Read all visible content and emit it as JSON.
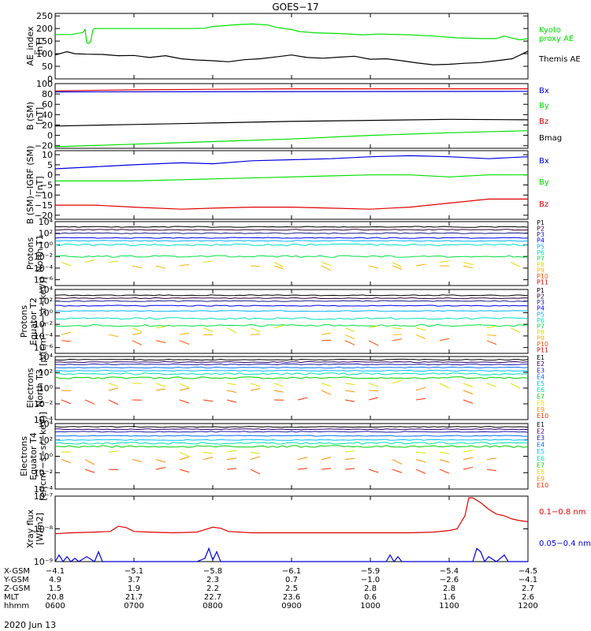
{
  "title": "GOES−17",
  "date_label": "2020 Jun 13",
  "colors": {
    "black": "#000000",
    "red": "#e00000",
    "green": "#00e000",
    "blue": "#0000e0",
    "p_series": [
      "#000000",
      "#330033",
      "#1c1c8e",
      "#0000ff",
      "#00b4ff",
      "#00e0c0",
      "#00e040",
      "#d8e000",
      "#ffb000",
      "#ff5000",
      "#e00000"
    ],
    "e_series": [
      "#000000",
      "#30006a",
      "#1a1ab0",
      "#0070ff",
      "#00c0ff",
      "#00e0b0",
      "#00d000",
      "#e0e000",
      "#ff9000",
      "#ff3000",
      "#e00000"
    ]
  },
  "chart_data": [
    {
      "type": "line",
      "id": "ae",
      "ylabel": [
        "AE_index",
        "[nT]"
      ],
      "ylim": [
        0,
        260
      ],
      "yticks": [
        "0",
        "50",
        "100",
        "150",
        "200",
        "250"
      ],
      "ytick_values": [
        0,
        50,
        100,
        150,
        200,
        250
      ],
      "xlim": [
        600,
        1200
      ],
      "series": [
        {
          "name": "Kyoto proxy AE",
          "label_lines": [
            "Kyoto",
            "proxy AE"
          ],
          "color": "#00e000",
          "x": [
            600,
            620,
            635,
            638,
            640,
            642,
            645,
            648,
            650,
            655,
            660,
            665,
            690,
            710,
            730,
            750,
            770,
            790,
            800,
            830,
            850,
            870,
            880,
            890,
            900,
            910,
            930,
            960,
            990,
            1010,
            1050,
            1080,
            1110,
            1140,
            1150,
            1160,
            1170,
            1180,
            1190,
            1200
          ],
          "y": [
            176,
            176,
            184,
            196,
            145,
            140,
            148,
            195,
            200,
            200,
            200,
            200,
            200,
            200,
            200,
            200,
            200,
            201,
            208,
            215,
            218,
            214,
            205,
            200,
            196,
            188,
            183,
            180,
            175,
            178,
            175,
            170,
            163,
            160,
            160,
            160,
            170,
            162,
            155,
            160
          ]
        },
        {
          "name": "Themis AE",
          "label_lines": [
            "Themis AE"
          ],
          "color": "#000000",
          "x": [
            600,
            615,
            625,
            640,
            660,
            680,
            700,
            720,
            740,
            760,
            780,
            800,
            820,
            840,
            860,
            880,
            900,
            920,
            940,
            960,
            980,
            1000,
            1020,
            1040,
            1060,
            1080,
            1100,
            1120,
            1140,
            1160,
            1180,
            1200
          ],
          "y": [
            95,
            108,
            100,
            98,
            97,
            92,
            93,
            85,
            92,
            80,
            75,
            72,
            68,
            76,
            80,
            87,
            95,
            85,
            82,
            86,
            90,
            78,
            80,
            72,
            63,
            56,
            58,
            62,
            65,
            72,
            80,
            110
          ]
        }
      ]
    },
    {
      "type": "line",
      "id": "bsm",
      "ylabel": [
        "B (SM)",
        "[nT]"
      ],
      "ylim": [
        -25,
        100
      ],
      "yticks": [
        "−20",
        "0",
        "20",
        "40",
        "60",
        "80",
        "100"
      ],
      "ytick_values": [
        -20,
        0,
        20,
        40,
        60,
        80,
        100
      ],
      "xlim": [
        600,
        1200
      ],
      "series": [
        {
          "name": "Bx",
          "color": "#0000e0",
          "x": [
            600,
            1200
          ],
          "y": [
            84,
            85
          ]
        },
        {
          "name": "By",
          "color": "#00e000",
          "x": [
            600,
            700,
            800,
            900,
            1000,
            1100,
            1200
          ],
          "y": [
            -22,
            -17,
            -12,
            -7,
            0,
            5,
            9
          ]
        },
        {
          "name": "Bz",
          "color": "#e00000",
          "x": [
            600,
            700,
            800,
            900,
            1000,
            1100,
            1200
          ],
          "y": [
            86,
            88,
            89,
            90,
            90,
            90,
            90
          ]
        },
        {
          "name": "Bmag",
          "color": "#000000",
          "x": [
            600,
            700,
            800,
            900,
            1000,
            1100,
            1200
          ],
          "y": [
            18,
            21,
            24,
            27,
            29,
            31,
            30
          ]
        }
      ]
    },
    {
      "type": "line",
      "id": "bigrf",
      "ylabel": [
        "B (SM)−IGRF (SM)",
        "[nT]"
      ],
      "ylim": [
        -22,
        12
      ],
      "yticks": [
        "−20",
        "−15",
        "−10",
        "−5",
        "0",
        "5",
        "10"
      ],
      "ytick_values": [
        -20,
        -15,
        -10,
        -5,
        0,
        5,
        10
      ],
      "xlim": [
        600,
        1200
      ],
      "series": [
        {
          "name": "Bx",
          "color": "#0000e0",
          "x": [
            600,
            650,
            700,
            760,
            800,
            850,
            900,
            950,
            1000,
            1050,
            1100,
            1150,
            1200
          ],
          "y": [
            3,
            4,
            5,
            6,
            5.5,
            7,
            7.5,
            8,
            9,
            9.5,
            9,
            8,
            9
          ]
        },
        {
          "name": "By",
          "color": "#00e000",
          "x": [
            600,
            700,
            800,
            900,
            1000,
            1050,
            1100,
            1150,
            1200
          ],
          "y": [
            -3,
            -3,
            -2,
            -1,
            0,
            0,
            -1,
            0,
            0
          ]
        },
        {
          "name": "Bz",
          "color": "#e00000",
          "x": [
            600,
            650,
            700,
            760,
            800,
            850,
            900,
            950,
            1000,
            1050,
            1100,
            1150,
            1200
          ],
          "y": [
            -15,
            -15,
            -16,
            -17,
            -16.5,
            -16,
            -16,
            -16.5,
            -17,
            -16,
            -14,
            -12,
            -12
          ]
        }
      ]
    },
    {
      "type": "line",
      "id": "p_t1",
      "log": true,
      "ylabel": [
        "Protons",
        "North T1"
      ],
      "ylim_exp": [
        -7,
        4
      ],
      "yticks": [
        "10⁴",
        "10²",
        "10⁰",
        "10⁻²",
        "10⁻⁴",
        "10⁻⁶"
      ],
      "ytick_exps": [
        4,
        2,
        0,
        -2,
        -4,
        -6
      ],
      "xlim": [
        600,
        1200
      ],
      "series_names": [
        "P1",
        "P2",
        "P3",
        "P4",
        "P5",
        "P6",
        "P7",
        "P8",
        "P9",
        "P10",
        "P11"
      ],
      "series_exps": [
        3.1,
        2.6,
        2.0,
        1.2,
        0.7,
        0.0,
        -2.0,
        -3.0,
        -3.6,
        null,
        null
      ]
    },
    {
      "type": "line",
      "id": "p_t2",
      "log": true,
      "ylabel": [
        "Protons",
        "Equator T2",
        "[p/(cm²−s−sr−keV)]"
      ],
      "ylim_exp": [
        -7,
        4
      ],
      "yticks": [
        "10⁴",
        "10²",
        "10⁰",
        "10⁻²",
        "10⁻⁴",
        "10⁻⁶"
      ],
      "ytick_exps": [
        4,
        2,
        0,
        -2,
        -4,
        -6
      ],
      "xlim": [
        600,
        1200
      ],
      "series_names": [
        "P1",
        "P2",
        "P3",
        "P4",
        "P5",
        "P6",
        "P7",
        "P8",
        "P9",
        "P10",
        "P11"
      ],
      "series_exps": [
        3.0,
        2.5,
        2.0,
        1.2,
        0.3,
        -1.0,
        -2.2,
        -2.6,
        -3.8,
        -4.8,
        null
      ]
    },
    {
      "type": "line",
      "id": "e_t3",
      "log": true,
      "ylabel": [
        "Electrons",
        "North T3"
      ],
      "ylim_exp": [
        -4,
        4
      ],
      "yticks": [
        "10⁴",
        "10²",
        "10⁰",
        "10⁻²",
        "10⁻⁴"
      ],
      "ytick_exps": [
        4,
        2,
        0,
        -2,
        -4
      ],
      "xlim": [
        600,
        1200
      ],
      "series_names": [
        "E1",
        "E2",
        "E3",
        "E4",
        "E5",
        "E6",
        "E7",
        "E8",
        "E9",
        "E10"
      ],
      "series_exps": [
        3.6,
        3.3,
        3.0,
        2.6,
        2.2,
        1.8,
        1.3,
        0.6,
        -0.3,
        -1.5
      ]
    },
    {
      "type": "line",
      "id": "e_t4",
      "log": true,
      "ylabel": [
        "Electrons",
        "Equator T4",
        "[e/(cm²−s−sr−keV)]"
      ],
      "ylim_exp": [
        -4,
        4
      ],
      "yticks": [
        "10⁴",
        "10²",
        "10⁰",
        "10⁻²",
        "10⁻⁴"
      ],
      "ytick_exps": [
        4,
        2,
        0,
        -2,
        -4
      ],
      "xlim": [
        600,
        1200
      ],
      "series_names": [
        "E1",
        "E2",
        "E3",
        "E4",
        "E5",
        "E6",
        "E7",
        "E8",
        "E9",
        "E10"
      ],
      "series_exps": [
        3.6,
        3.3,
        3.0,
        2.5,
        2.0,
        1.6,
        1.2,
        0.5,
        -0.4,
        -1.6
      ]
    },
    {
      "type": "line",
      "id": "xray",
      "log": true,
      "ylabel": [
        "Xray flux",
        "[W/m2]"
      ],
      "ylim_exp": [
        -9,
        -7
      ],
      "yticks": [
        "10⁻⁷",
        "10⁻⁸",
        "10⁻⁹"
      ],
      "ytick_exps": [
        -7,
        -8,
        -9
      ],
      "xlim": [
        600,
        1200
      ],
      "series": [
        {
          "name": "0.1−0.8 nm",
          "color": "#e00000",
          "x": [
            600,
            620,
            650,
            670,
            680,
            690,
            700,
            720,
            750,
            780,
            800,
            810,
            820,
            850,
            900,
            950,
            1000,
            1050,
            1080,
            1100,
            1110,
            1120,
            1125,
            1130,
            1140,
            1150,
            1160,
            1170,
            1180,
            1190,
            1200
          ],
          "y_exp": [
            -8.15,
            -8.12,
            -8.1,
            -8.08,
            -7.92,
            -7.96,
            -8.08,
            -8.1,
            -8.12,
            -8.1,
            -7.95,
            -7.98,
            -8.08,
            -8.12,
            -8.12,
            -8.12,
            -8.12,
            -8.12,
            -8.1,
            -8.05,
            -8.0,
            -7.6,
            -7.05,
            -7.05,
            -7.2,
            -7.4,
            -7.55,
            -7.6,
            -7.7,
            -7.75,
            -7.78
          ]
        },
        {
          "name": "0.05−0.4 nm",
          "color": "#0000e0",
          "x": [
            600,
            605,
            610,
            615,
            620,
            625,
            630,
            640,
            650,
            655,
            660,
            665,
            700,
            780,
            790,
            795,
            800,
            805,
            810,
            900,
            1020,
            1025,
            1030,
            1035,
            1040,
            1100,
            1130,
            1135,
            1140,
            1145,
            1150,
            1160,
            1170,
            1175,
            1180,
            1200
          ],
          "y_exp": [
            -9.0,
            -8.8,
            -9.0,
            -8.85,
            -9.0,
            -8.9,
            -9.0,
            -8.85,
            -9.0,
            -8.7,
            -9.0,
            -9.0,
            -9.0,
            -9.0,
            -8.9,
            -8.6,
            -8.95,
            -8.7,
            -9.0,
            -9.0,
            -9.0,
            -8.8,
            -9.0,
            -8.85,
            -9.0,
            -9.0,
            -9.0,
            -8.6,
            -8.7,
            -9.0,
            -8.85,
            -9.0,
            -8.8,
            -9.0,
            -9.0,
            -9.0
          ]
        }
      ]
    }
  ],
  "orbit_table": {
    "row_labels": [
      "X-GSM",
      "Y-GSM",
      "Z-GSM",
      "MLT",
      "hhmm"
    ],
    "columns": [
      {
        "x": 600,
        "values": [
          "−4.1",
          "4.9",
          "1.5",
          "20.8",
          "0600"
        ]
      },
      {
        "x": 700,
        "values": [
          "−5.1",
          "3.7",
          "1.9",
          "21.7",
          "0700"
        ]
      },
      {
        "x": 800,
        "values": [
          "−5.8",
          "2.3",
          "2.2",
          "22.7",
          "0800"
        ]
      },
      {
        "x": 900,
        "values": [
          "−6.1",
          "0.7",
          "2.5",
          "23.6",
          "0900"
        ]
      },
      {
        "x": 1000,
        "values": [
          "−5.9",
          "−1.0",
          "2.8",
          "0.6",
          "1000"
        ]
      },
      {
        "x": 1100,
        "values": [
          "−5.4",
          "−2.6",
          "2.8",
          "1.6",
          "1100"
        ]
      },
      {
        "x": 1200,
        "values": [
          "−4.5",
          "−4.1",
          "2.7",
          "2.6",
          "1200"
        ]
      }
    ]
  }
}
